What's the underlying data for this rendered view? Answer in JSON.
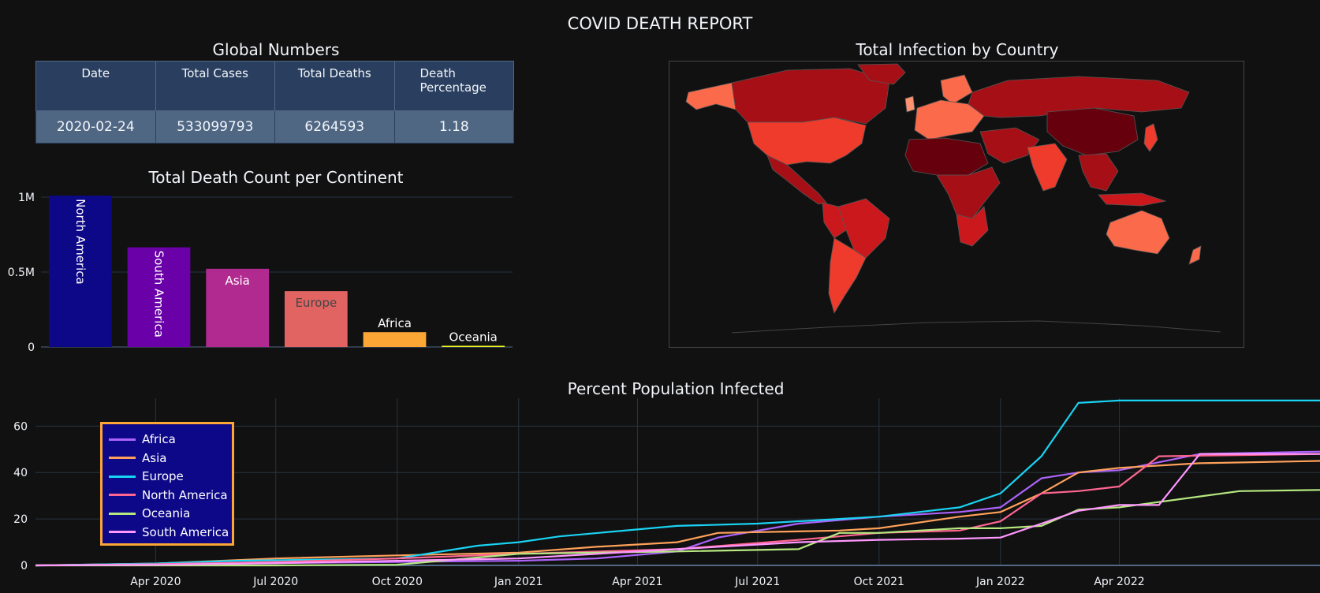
{
  "dashboard_title": "COVID DEATH REPORT",
  "table": {
    "title": "Global Numbers",
    "headers": [
      "Date",
      "Total Cases",
      "Total Deaths",
      "Death Percentage"
    ],
    "row": [
      "2020-02-24",
      "533099793",
      "6264593",
      "1.18"
    ]
  },
  "map": {
    "title": "Total Infection by Country",
    "colorscale": [
      "#67000d",
      "#a50f15",
      "#cb181d",
      "#ef3b2c",
      "#fb6a4a",
      "#fc9272"
    ]
  },
  "chart_data": [
    {
      "type": "bar",
      "title": "Total Death Count per Continent",
      "categories": [
        "North America",
        "South America",
        "Asia",
        "Europe",
        "Africa",
        "Oceania"
      ],
      "values": [
        1010000,
        665000,
        522000,
        373000,
        99000,
        8000
      ],
      "colors": [
        "#0d0887",
        "#6a00a8",
        "#b12a90",
        "#e16462",
        "#fca636",
        "#f0f921"
      ],
      "yticks": [
        {
          "v": 0,
          "label": "0"
        },
        {
          "v": 500000,
          "label": "0.5M"
        },
        {
          "v": 1000000,
          "label": "1M"
        }
      ],
      "ylim": [
        0,
        1000000
      ],
      "grid": true
    },
    {
      "type": "line",
      "title": "Percent Population Infected",
      "x_range": [
        "2020-01-01",
        "2022-08-31"
      ],
      "xticks": [
        {
          "date": "2020-04-01",
          "label": "Apr 2020"
        },
        {
          "date": "2020-07-01",
          "label": "Jul 2020"
        },
        {
          "date": "2020-10-01",
          "label": "Oct 2020"
        },
        {
          "date": "2021-01-01",
          "label": "Jan 2021"
        },
        {
          "date": "2021-04-01",
          "label": "Apr 2021"
        },
        {
          "date": "2021-07-01",
          "label": "Jul 2021"
        },
        {
          "date": "2021-10-01",
          "label": "Oct 2021"
        },
        {
          "date": "2022-01-01",
          "label": "Jan 2022"
        },
        {
          "date": "2022-04-01",
          "label": "Apr 2022"
        }
      ],
      "yticks": [
        0,
        20,
        40,
        60
      ],
      "ylim": [
        0,
        72
      ],
      "legend": {
        "position": "top-left",
        "bgcolor": "#0d0887",
        "bordercolor": "#fca636"
      },
      "series": [
        {
          "name": "Africa",
          "color": "#ab63fa",
          "points": [
            [
              "2020-01-01",
              0
            ],
            [
              "2020-04-01",
              0.3
            ],
            [
              "2020-07-01",
              1
            ],
            [
              "2020-10-01",
              1.5
            ],
            [
              "2021-01-01",
              2
            ],
            [
              "2021-03-01",
              3
            ],
            [
              "2021-05-01",
              6
            ],
            [
              "2021-06-01",
              12
            ],
            [
              "2021-08-01",
              18
            ],
            [
              "2021-10-01",
              21
            ],
            [
              "2021-12-01",
              23
            ],
            [
              "2022-01-01",
              25
            ],
            [
              "2022-02-01",
              37.5
            ],
            [
              "2022-03-01",
              40
            ],
            [
              "2022-04-01",
              41
            ],
            [
              "2022-06-01",
              48
            ],
            [
              "2022-08-31",
              49
            ]
          ]
        },
        {
          "name": "Asia",
          "color": "#FFA15A",
          "points": [
            [
              "2020-01-01",
              0
            ],
            [
              "2020-04-01",
              0.8
            ],
            [
              "2020-07-01",
              3
            ],
            [
              "2020-10-01",
              4.3
            ],
            [
              "2021-01-01",
              5.5
            ],
            [
              "2021-03-01",
              8
            ],
            [
              "2021-05-01",
              10
            ],
            [
              "2021-06-01",
              14
            ],
            [
              "2021-09-01",
              15
            ],
            [
              "2021-10-01",
              16
            ],
            [
              "2021-12-01",
              21
            ],
            [
              "2022-01-01",
              23
            ],
            [
              "2022-02-01",
              31
            ],
            [
              "2022-03-01",
              40
            ],
            [
              "2022-04-01",
              42
            ],
            [
              "2022-06-01",
              44
            ],
            [
              "2022-08-31",
              45
            ]
          ]
        },
        {
          "name": "Europe",
          "color": "#19d3f3",
          "points": [
            [
              "2020-01-01",
              0
            ],
            [
              "2020-04-01",
              0.8
            ],
            [
              "2020-06-01",
              2
            ],
            [
              "2020-10-01",
              3
            ],
            [
              "2020-12-01",
              8.5
            ],
            [
              "2021-01-01",
              10
            ],
            [
              "2021-02-01",
              12.5
            ],
            [
              "2021-05-01",
              17
            ],
            [
              "2021-07-01",
              18
            ],
            [
              "2021-10-01",
              21
            ],
            [
              "2021-12-01",
              25
            ],
            [
              "2022-01-01",
              31
            ],
            [
              "2022-02-01",
              47
            ],
            [
              "2022-03-01",
              70
            ],
            [
              "2022-04-01",
              71
            ],
            [
              "2022-08-31",
              71
            ]
          ]
        },
        {
          "name": "North America",
          "color": "#FF6692",
          "points": [
            [
              "2020-01-01",
              0
            ],
            [
              "2020-04-01",
              0.5
            ],
            [
              "2020-07-01",
              1.5
            ],
            [
              "2020-10-01",
              3
            ],
            [
              "2021-01-01",
              5
            ],
            [
              "2021-05-01",
              7
            ],
            [
              "2021-08-01",
              11
            ],
            [
              "2021-10-01",
              14
            ],
            [
              "2021-12-01",
              15
            ],
            [
              "2022-01-01",
              19
            ],
            [
              "2022-02-01",
              31
            ],
            [
              "2022-03-01",
              32
            ],
            [
              "2022-04-01",
              34
            ],
            [
              "2022-05-01",
              47
            ],
            [
              "2022-08-31",
              48
            ]
          ]
        },
        {
          "name": "Oceania",
          "color": "#B6E880",
          "points": [
            [
              "2020-01-01",
              0
            ],
            [
              "2020-07-01",
              0
            ],
            [
              "2020-10-01",
              0.3
            ],
            [
              "2021-01-01",
              5
            ],
            [
              "2021-05-01",
              6
            ],
            [
              "2021-08-01",
              7
            ],
            [
              "2021-09-01",
              14
            ],
            [
              "2021-10-01",
              14
            ],
            [
              "2021-12-01",
              16
            ],
            [
              "2022-01-01",
              16
            ],
            [
              "2022-02-01",
              17
            ],
            [
              "2022-03-01",
              24
            ],
            [
              "2022-04-01",
              25
            ],
            [
              "2022-07-01",
              32
            ],
            [
              "2022-08-31",
              32.5
            ]
          ]
        },
        {
          "name": "South America",
          "color": "#FF97FF",
          "points": [
            [
              "2020-01-01",
              0
            ],
            [
              "2020-04-01",
              0.3
            ],
            [
              "2020-07-01",
              1
            ],
            [
              "2020-10-01",
              2
            ],
            [
              "2021-01-01",
              3
            ],
            [
              "2021-05-01",
              7
            ],
            [
              "2021-08-01",
              10
            ],
            [
              "2021-10-01",
              11
            ],
            [
              "2021-12-01",
              11.5
            ],
            [
              "2022-01-01",
              12
            ],
            [
              "2022-02-01",
              18
            ],
            [
              "2022-03-01",
              23.5
            ],
            [
              "2022-04-01",
              26
            ],
            [
              "2022-05-01",
              26
            ],
            [
              "2022-06-01",
              48
            ],
            [
              "2022-08-31",
              48
            ]
          ]
        }
      ]
    }
  ]
}
